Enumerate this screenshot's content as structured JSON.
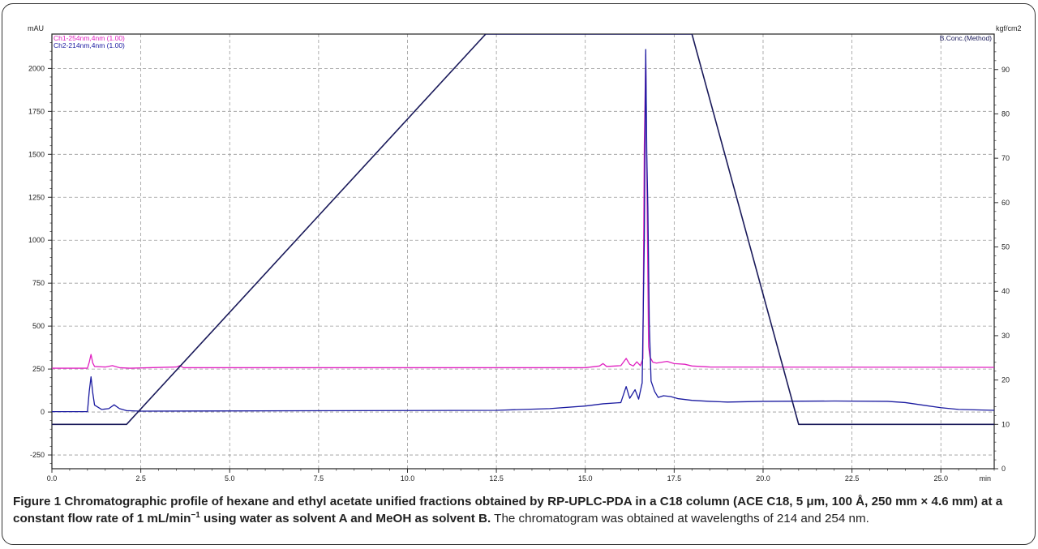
{
  "chart_data": {
    "type": "line",
    "ylabel_left": "mAU",
    "ylabel_right": "kgf/cm2",
    "xunit": "min",
    "xlim": [
      0,
      26.5
    ],
    "ylim_left": [
      -330,
      2200
    ],
    "ylim_right": [
      0,
      98
    ],
    "x_ticks": [
      "0.0",
      "2.5",
      "5.0",
      "7.5",
      "10.0",
      "12.5",
      "15.0",
      "17.5",
      "20.0",
      "22.5",
      "25.0"
    ],
    "y_ticks_left": [
      "-250",
      "0",
      "250",
      "500",
      "750",
      "1000",
      "1250",
      "1500",
      "1750",
      "2000"
    ],
    "y_ticks_right": [
      "0",
      "10",
      "20",
      "30",
      "40",
      "50",
      "60",
      "70",
      "80",
      "90"
    ],
    "grid": true,
    "legend_placement": "top-left",
    "legend": [
      {
        "name": "Ch1-254nm,4nm (1.00)",
        "color": "#e020c0"
      },
      {
        "name": "Ch2-214nm,4nm (1.00)",
        "color": "#1a1aa0"
      }
    ],
    "right_legend": {
      "name": "B.Conc.(Method)",
      "color": "#1a1a5a"
    },
    "series": [
      {
        "channel": "254nm",
        "axis": "left",
        "color": "#e020c0",
        "points": [
          [
            0,
            255
          ],
          [
            1.0,
            255
          ],
          [
            1.05,
            290
          ],
          [
            1.1,
            335
          ],
          [
            1.15,
            285
          ],
          [
            1.2,
            265
          ],
          [
            1.5,
            262
          ],
          [
            1.7,
            270
          ],
          [
            1.9,
            258
          ],
          [
            2.2,
            255
          ],
          [
            3.5,
            262
          ],
          [
            3.6,
            270
          ],
          [
            3.7,
            258
          ],
          [
            12.5,
            258
          ],
          [
            15.0,
            258
          ],
          [
            15.4,
            268
          ],
          [
            15.5,
            282
          ],
          [
            15.6,
            265
          ],
          [
            16.0,
            270
          ],
          [
            16.15,
            312
          ],
          [
            16.25,
            278
          ],
          [
            16.35,
            268
          ],
          [
            16.45,
            292
          ],
          [
            16.55,
            270
          ],
          [
            16.62,
            310
          ],
          [
            16.66,
            1550
          ],
          [
            16.7,
            2080
          ],
          [
            16.74,
            1200
          ],
          [
            16.78,
            380
          ],
          [
            16.82,
            320
          ],
          [
            16.9,
            290
          ],
          [
            17.0,
            285
          ],
          [
            17.3,
            295
          ],
          [
            17.5,
            282
          ],
          [
            17.8,
            278
          ],
          [
            18.0,
            268
          ],
          [
            18.5,
            262
          ],
          [
            26.5,
            260
          ]
        ]
      },
      {
        "channel": "214nm",
        "axis": "left",
        "color": "#1a1aa0",
        "points": [
          [
            0,
            2
          ],
          [
            1.0,
            2
          ],
          [
            1.05,
            120
          ],
          [
            1.1,
            205
          ],
          [
            1.15,
            110
          ],
          [
            1.2,
            40
          ],
          [
            1.4,
            15
          ],
          [
            1.6,
            20
          ],
          [
            1.75,
            42
          ],
          [
            1.9,
            20
          ],
          [
            2.1,
            8
          ],
          [
            2.5,
            5
          ],
          [
            12.5,
            10
          ],
          [
            14.0,
            20
          ],
          [
            15.0,
            35
          ],
          [
            15.5,
            48
          ],
          [
            16.0,
            55
          ],
          [
            16.15,
            148
          ],
          [
            16.25,
            80
          ],
          [
            16.4,
            130
          ],
          [
            16.5,
            75
          ],
          [
            16.6,
            170
          ],
          [
            16.66,
            1000
          ],
          [
            16.7,
            2110
          ],
          [
            16.73,
            1500
          ],
          [
            16.76,
            1190
          ],
          [
            16.8,
            520
          ],
          [
            16.85,
            180
          ],
          [
            16.95,
            120
          ],
          [
            17.05,
            85
          ],
          [
            17.2,
            95
          ],
          [
            17.4,
            90
          ],
          [
            17.6,
            78
          ],
          [
            18.0,
            68
          ],
          [
            18.5,
            62
          ],
          [
            19.0,
            58
          ],
          [
            20.0,
            62
          ],
          [
            22.0,
            64
          ],
          [
            23.5,
            62
          ],
          [
            24.0,
            55
          ],
          [
            25.0,
            25
          ],
          [
            25.5,
            15
          ],
          [
            26.5,
            10
          ]
        ]
      },
      {
        "channel": "B.Conc.(Method)",
        "axis": "right",
        "color": "#1a1a5a",
        "points": [
          [
            0,
            10
          ],
          [
            2.1,
            10
          ],
          [
            12.2,
            98
          ],
          [
            18.0,
            98
          ],
          [
            21.0,
            10
          ],
          [
            26.5,
            10
          ]
        ]
      }
    ]
  },
  "caption": {
    "label": "Figure 1",
    "bold_text": "Chromatographic profile of hexane and ethyl acetate unified fractions obtained by RP-UPLC-PDA in a C18 column (ACE C18, 5 μm, 100 Å, 250 mm × 4.6 mm) at a constant flow rate of 1 mL/min",
    "superscript": "−1",
    "bold_text_end": " using water as solvent A and MeOH as solvent B.",
    "normal_text": " The chromatogram was obtained at wavelengths of 214 and 254 nm."
  }
}
